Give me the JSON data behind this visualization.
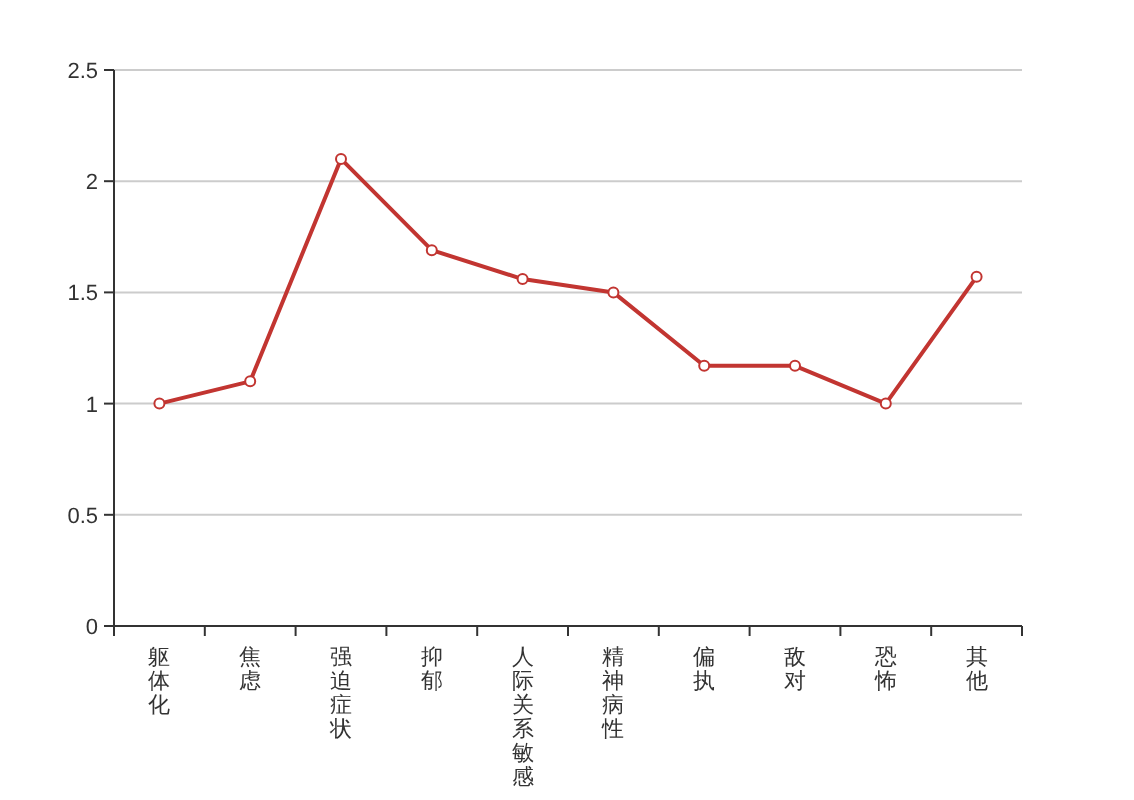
{
  "chart_data": {
    "type": "line",
    "categories": [
      "躯体化",
      "焦虑",
      "强迫症状",
      "抑郁",
      "人际关系敏感",
      "精神病性",
      "偏执",
      "敌对",
      "恐怖",
      "其他"
    ],
    "series": [
      {
        "color": "#c23531",
        "values": [
          1.0,
          1.1,
          2.1,
          1.69,
          1.56,
          1.5,
          1.17,
          1.17,
          1.0,
          1.57
        ]
      }
    ],
    "ylim": [
      0,
      2.5
    ],
    "yticks": [
      0,
      0.5,
      1,
      1.5,
      2,
      2.5
    ],
    "grid": "y",
    "marker": "circle",
    "line_style": "solid"
  }
}
